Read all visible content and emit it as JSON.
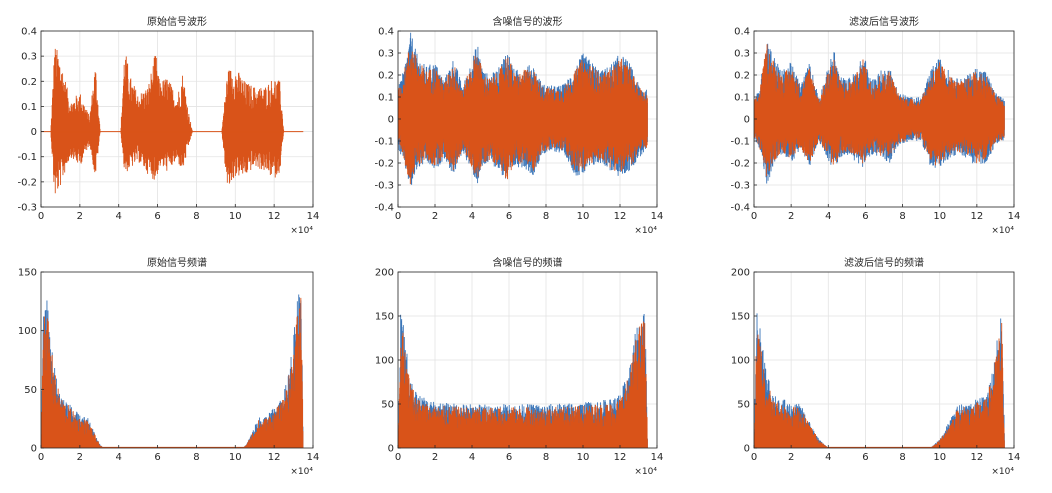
{
  "chart_data": [
    {
      "type": "area",
      "title": "原始信号波形",
      "xlim": [
        0,
        14
      ],
      "ylim": [
        -0.3,
        0.4
      ],
      "xticks": [
        "0",
        "2",
        "4",
        "6",
        "8",
        "10",
        "12",
        "14"
      ],
      "yticks": [
        "-0.3",
        "-0.2",
        "-0.1",
        "0",
        "0.1",
        "0.2",
        "0.3",
        "0.4"
      ],
      "x_exponent": "×10⁴",
      "grid": true,
      "envelope": {
        "x": [
          0.5,
          0.7,
          1.0,
          1.5,
          2.0,
          2.5,
          2.8,
          3.05,
          3.2,
          4.1,
          4.3,
          4.6,
          5.0,
          5.5,
          5.9,
          6.1,
          6.5,
          7.0,
          7.3,
          7.6,
          7.8,
          9.3,
          9.6,
          10.0,
          10.5,
          11.0,
          11.5,
          12.0,
          12.3,
          12.5
        ],
        "upper": [
          0.0,
          0.35,
          0.3,
          0.12,
          0.16,
          0.06,
          0.28,
          0.0,
          0.0,
          0.0,
          0.34,
          0.22,
          0.15,
          0.18,
          0.32,
          0.2,
          0.22,
          0.14,
          0.24,
          0.08,
          0.0,
          0.0,
          0.25,
          0.26,
          0.2,
          0.18,
          0.18,
          0.22,
          0.2,
          0.0
        ],
        "lower": [
          0.0,
          -0.27,
          -0.22,
          -0.1,
          -0.14,
          -0.05,
          -0.19,
          0.0,
          0.0,
          0.0,
          -0.17,
          -0.15,
          -0.12,
          -0.17,
          -0.2,
          -0.14,
          -0.16,
          -0.12,
          -0.16,
          -0.06,
          0.0,
          0.0,
          -0.24,
          -0.18,
          -0.18,
          -0.14,
          -0.16,
          -0.19,
          -0.16,
          0.0
        ],
        "baseline_until": 13.5
      }
    },
    {
      "type": "area",
      "title": "含噪信号的波形",
      "xlim": [
        0,
        14
      ],
      "ylim": [
        -0.4,
        0.4
      ],
      "xticks": [
        "0",
        "2",
        "4",
        "6",
        "8",
        "10",
        "12",
        "14"
      ],
      "yticks": [
        "-0.4",
        "-0.3",
        "-0.2",
        "-0.1",
        "0",
        "0.1",
        "0.2",
        "0.3",
        "0.4"
      ],
      "x_exponent": "×10⁴",
      "grid": true,
      "envelope": {
        "x": [
          0.0,
          0.3,
          0.7,
          1.0,
          1.5,
          2.0,
          2.5,
          3.0,
          3.5,
          4.3,
          4.6,
          5.0,
          5.5,
          5.9,
          6.3,
          6.8,
          7.3,
          7.8,
          8.5,
          9.0,
          9.6,
          10.0,
          10.5,
          11.0,
          11.5,
          12.0,
          12.5,
          13.0,
          13.5
        ],
        "upper": [
          0.14,
          0.22,
          0.4,
          0.3,
          0.24,
          0.26,
          0.18,
          0.28,
          0.15,
          0.35,
          0.22,
          0.2,
          0.24,
          0.33,
          0.22,
          0.24,
          0.25,
          0.16,
          0.15,
          0.16,
          0.24,
          0.3,
          0.26,
          0.22,
          0.25,
          0.3,
          0.26,
          0.16,
          0.13
        ],
        "lower": [
          -0.14,
          -0.2,
          -0.33,
          -0.24,
          -0.2,
          -0.24,
          -0.18,
          -0.26,
          -0.15,
          -0.3,
          -0.22,
          -0.2,
          -0.24,
          -0.3,
          -0.22,
          -0.22,
          -0.26,
          -0.16,
          -0.15,
          -0.16,
          -0.26,
          -0.26,
          -0.22,
          -0.2,
          -0.24,
          -0.27,
          -0.24,
          -0.18,
          -0.14
        ]
      }
    },
    {
      "type": "area",
      "title": "滤波后信号波形",
      "xlim": [
        0,
        14
      ],
      "ylim": [
        -0.4,
        0.4
      ],
      "xticks": [
        "0",
        "2",
        "4",
        "6",
        "8",
        "10",
        "12",
        "14"
      ],
      "yticks": [
        "-0.4",
        "-0.3",
        "-0.2",
        "-0.1",
        "0",
        "0.1",
        "0.2",
        "0.3",
        "0.4"
      ],
      "x_exponent": "×10⁴",
      "grid": true,
      "envelope": {
        "x": [
          0.0,
          0.3,
          0.7,
          1.0,
          1.5,
          2.0,
          2.5,
          3.0,
          3.5,
          4.3,
          4.6,
          5.0,
          5.5,
          5.9,
          6.3,
          6.8,
          7.3,
          7.8,
          8.5,
          9.0,
          9.6,
          10.0,
          10.5,
          11.0,
          11.5,
          12.0,
          12.5,
          13.0,
          13.5
        ],
        "upper": [
          0.09,
          0.14,
          0.38,
          0.3,
          0.22,
          0.26,
          0.16,
          0.26,
          0.1,
          0.32,
          0.2,
          0.18,
          0.22,
          0.3,
          0.18,
          0.22,
          0.24,
          0.12,
          0.1,
          0.1,
          0.24,
          0.28,
          0.22,
          0.18,
          0.2,
          0.24,
          0.22,
          0.12,
          0.09
        ],
        "lower": [
          -0.09,
          -0.14,
          -0.31,
          -0.22,
          -0.16,
          -0.2,
          -0.14,
          -0.22,
          -0.1,
          -0.24,
          -0.18,
          -0.16,
          -0.2,
          -0.22,
          -0.16,
          -0.18,
          -0.2,
          -0.12,
          -0.1,
          -0.1,
          -0.24,
          -0.22,
          -0.18,
          -0.16,
          -0.18,
          -0.22,
          -0.2,
          -0.12,
          -0.1
        ]
      }
    },
    {
      "type": "area",
      "title": "原始信号频谱",
      "xlim": [
        0,
        14
      ],
      "ylim": [
        0,
        150
      ],
      "xticks": [
        "0",
        "2",
        "4",
        "6",
        "8",
        "10",
        "12",
        "14"
      ],
      "yticks": [
        "0",
        "50",
        "100",
        "150"
      ],
      "x_exponent": "×10⁴",
      "grid": false,
      "envelope": {
        "x": [
          0.0,
          0.15,
          0.3,
          0.5,
          0.8,
          1.0,
          1.3,
          1.6,
          2.0,
          2.4,
          2.7,
          3.0,
          3.2,
          10.4,
          10.6,
          10.9,
          11.2,
          11.6,
          12.0,
          12.4,
          12.7,
          13.0,
          13.2,
          13.4,
          13.5
        ],
        "upper": [
          0,
          145,
          130,
          95,
          60,
          48,
          42,
          35,
          28,
          26,
          15,
          4,
          0,
          0,
          4,
          15,
          26,
          28,
          35,
          42,
          60,
          95,
          130,
          145,
          0
        ]
      }
    },
    {
      "type": "area",
      "title": "含噪信号的频谱",
      "xlim": [
        0,
        14
      ],
      "ylim": [
        0,
        200
      ],
      "xticks": [
        "0",
        "2",
        "4",
        "6",
        "8",
        "10",
        "12",
        "14"
      ],
      "yticks": [
        "0",
        "50",
        "100",
        "150",
        "200"
      ],
      "x_exponent": "×10⁴",
      "grid": true,
      "envelope": {
        "x": [
          0.0,
          0.15,
          0.3,
          0.6,
          1.0,
          1.5,
          2.0,
          4.0,
          6.0,
          8.0,
          10.0,
          11.5,
          12.0,
          12.5,
          12.9,
          13.2,
          13.35,
          13.5
        ],
        "upper": [
          0,
          160,
          140,
          90,
          62,
          56,
          52,
          50,
          50,
          50,
          52,
          56,
          62,
          90,
          140,
          160,
          160,
          0
        ]
      }
    },
    {
      "type": "area",
      "title": "滤波后信号的频谱",
      "xlim": [
        0,
        14
      ],
      "ylim": [
        0,
        200
      ],
      "xticks": [
        "0",
        "2",
        "4",
        "6",
        "8",
        "10",
        "12",
        "14"
      ],
      "yticks": [
        "0",
        "50",
        "100",
        "150",
        "200"
      ],
      "x_exponent": "×10⁴",
      "grid": true,
      "envelope": {
        "x": [
          0.0,
          0.15,
          0.3,
          0.6,
          1.0,
          1.5,
          2.0,
          2.5,
          3.0,
          3.5,
          4.0,
          9.5,
          10.0,
          10.5,
          11.0,
          11.5,
          12.0,
          12.5,
          12.9,
          13.2,
          13.35,
          13.5
        ],
        "upper": [
          0,
          158,
          140,
          95,
          60,
          56,
          52,
          50,
          30,
          10,
          0,
          0,
          10,
          30,
          50,
          52,
          56,
          60,
          95,
          140,
          160,
          0
        ]
      }
    }
  ],
  "colors": {
    "noisy": "#3a75b8",
    "signal": "#d95319",
    "axis": "#262626",
    "grid": "#e3e3e3"
  }
}
